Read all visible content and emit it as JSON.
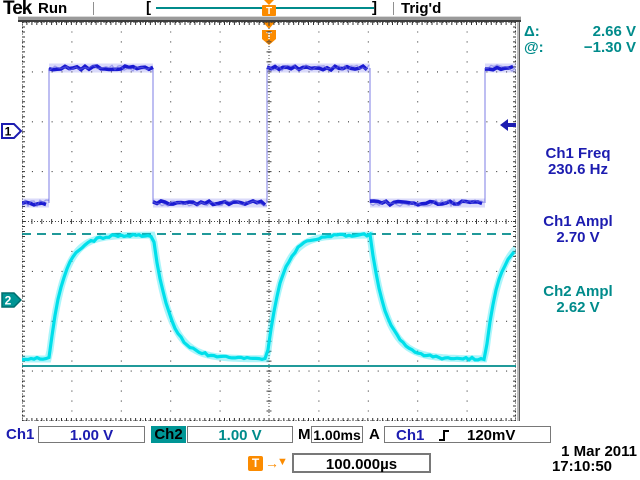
{
  "colors": {
    "ch1": "#1a1ad1",
    "ch1_edge": "#9b9bea",
    "ch1_glow": "rgba(70,70,228,0.20)",
    "ch2": "#00dfea",
    "ch2_glow": "rgba(0,225,240,0.33)",
    "teal": "#008b8b",
    "navy": "#1c1cb0",
    "orange": "#fb8b00",
    "graticule": "#3a3a3a"
  },
  "header": {
    "brand": "Tek",
    "acq_status": "Run",
    "trig_status": "Trig'd",
    "window_left_bracket": "[",
    "window_right_bracket": "]",
    "t_marker": "T"
  },
  "cursor_readout": {
    "delta_label": "Δ:",
    "delta_value": "2.66 V",
    "at_label": "@:",
    "at_value": "−1.30 V"
  },
  "measurements": [
    {
      "label": "Ch1 Freq",
      "value": "230.6 Hz",
      "color": "navy"
    },
    {
      "label": "Ch1 Ampl",
      "value": "2.70 V",
      "color": "navy"
    },
    {
      "label": "Ch2 Ampl",
      "value": "2.62 V",
      "color": "teal"
    }
  ],
  "channel_markers": {
    "ch1": "1",
    "ch2": "2"
  },
  "statusbar": {
    "ch1_label": "Ch1",
    "ch1_scale": "1.00 V",
    "ch2_label": "Ch2",
    "ch2_scale": "1.00 V",
    "horiz_label": "M",
    "horiz_scale": "1.00ms",
    "trig_mode": "A",
    "trig_source": "Ch1",
    "trig_level": "120mV"
  },
  "trigger_delay": {
    "t_label": "T",
    "arrow": "→",
    "pointer": "▼",
    "value": "100.000µs"
  },
  "datetime": {
    "date": "1 Mar 2011",
    "time": "17:10:50"
  },
  "chart_data": {
    "type": "line",
    "title": "Tektronix oscilloscope capture",
    "divisions": {
      "horizontal": 10,
      "vertical": 8
    },
    "timebase_per_div": "1.00ms",
    "delay_time": "100.000µs",
    "series": [
      {
        "name": "Ch1",
        "shape": "square",
        "color": "#1a1ad1",
        "volts_per_div": 1.0,
        "frequency_hz": 230.6,
        "amplitude_v": 2.7,
        "high_v": 1.26,
        "low_v": -1.44,
        "duty_cycle": 0.47
      },
      {
        "name": "Ch2",
        "shape": "rc_exponential",
        "color": "#00dfea",
        "volts_per_div": 1.0,
        "amplitude_v": 2.62,
        "top_v": 1.32,
        "bottom_v": -1.3,
        "time_constant_ms": 0.28
      }
    ],
    "cursors": {
      "type": "voltage",
      "delta_v": 2.66,
      "at_v": -1.3,
      "styles": [
        "dashed",
        "solid"
      ]
    },
    "trigger": {
      "source": "Ch1",
      "slope": "rising",
      "level": "120mV",
      "mode": "A"
    }
  }
}
